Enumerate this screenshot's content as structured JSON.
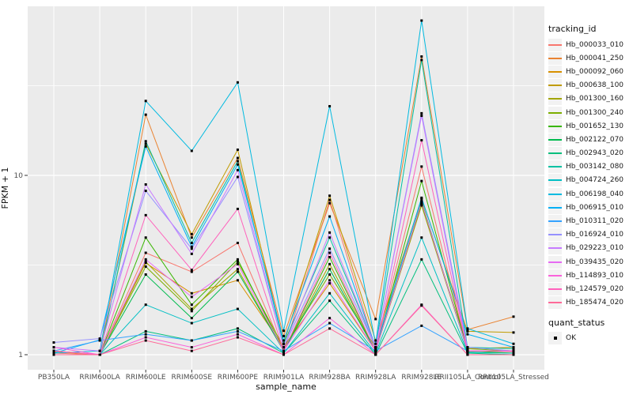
{
  "figure": {
    "background": "#FFFFFF",
    "panel_background": "#EBEBEB",
    "gridline_color": "#FFFFFF",
    "tick_color": "#333333",
    "tick_label_color": "#4D4D4D"
  },
  "legend": {
    "tracking_title": "tracking_id",
    "quant_title": "quant_status",
    "quant_items": [
      {
        "label": "OK",
        "marker": "black-square-point"
      }
    ],
    "key_background": "#F2F2F2"
  },
  "chart_data": {
    "type": "line",
    "xlabel": "sample_name",
    "ylabel": "FPKM + 1",
    "y_scale": "log10",
    "y_ticks": [
      1,
      10
    ],
    "y_tick_labels": [
      "1",
      "10"
    ],
    "ylim": [
      0.95,
      88
    ],
    "grid": true,
    "legend_position": "right",
    "point_marker": "small black square (quant_status = OK)",
    "x_categories": [
      "PB350LA",
      "RRIM600LA",
      "RRIM600LE",
      "RRIM600SE",
      "RRIM600PE",
      "RRIM901LA",
      "RRIM928BA",
      "RRIM928LA",
      "RRIM928LE",
      "RRII105LA_Control",
      "RRII105LA_Stressed"
    ],
    "series": [
      {
        "name": "Hb_000033_010",
        "color": "#F8766D",
        "values": [
          1.02,
          1.0,
          3.7,
          2.9,
          4.2,
          1.05,
          7.3,
          1.08,
          11.2,
          1.05,
          1.04
        ]
      },
      {
        "name": "Hb_000041_250",
        "color": "#EA8331",
        "values": [
          1.05,
          1.0,
          21.8,
          4.5,
          12.5,
          1.27,
          7.0,
          1.58,
          46.0,
          1.38,
          1.63
        ]
      },
      {
        "name": "Hb_000092_060",
        "color": "#D89000",
        "values": [
          1.05,
          1.0,
          3.25,
          2.2,
          2.6,
          1.1,
          2.5,
          1.05,
          7.0,
          1.08,
          1.1
        ]
      },
      {
        "name": "Hb_000638_100",
        "color": "#C09B00",
        "values": [
          1.04,
          1.0,
          15.0,
          4.7,
          13.9,
          1.15,
          7.7,
          1.2,
          7.4,
          1.35,
          1.33
        ]
      },
      {
        "name": "Hb_001300_160",
        "color": "#A3A500",
        "values": [
          1.0,
          1.0,
          3.3,
          1.8,
          3.0,
          1.05,
          3.2,
          1.05,
          6.8,
          1.05,
          1.05
        ]
      },
      {
        "name": "Hb_001300_240",
        "color": "#7CAE00",
        "values": [
          1.0,
          1.0,
          3.1,
          1.75,
          3.3,
          1.1,
          2.8,
          1.1,
          6.9,
          1.08,
          1.05
        ]
      },
      {
        "name": "Hb_001652_130",
        "color": "#39B600",
        "values": [
          1.0,
          1.0,
          4.5,
          1.9,
          3.4,
          1.05,
          3.5,
          1.05,
          9.3,
          1.05,
          1.02
        ]
      },
      {
        "name": "Hb_002122_070",
        "color": "#00BB4E",
        "values": [
          1.0,
          1.0,
          2.8,
          1.6,
          2.9,
          1.05,
          3.0,
          1.05,
          7.2,
          1.04,
          1.05
        ]
      },
      {
        "name": "Hb_002943_020",
        "color": "#00BF7D",
        "values": [
          1.0,
          1.0,
          1.35,
          1.2,
          1.4,
          1.02,
          2.0,
          1.0,
          3.4,
          1.02,
          1.0
        ]
      },
      {
        "name": "Hb_003142_080",
        "color": "#00C1A3",
        "values": [
          1.0,
          1.0,
          15.5,
          4.2,
          12.0,
          1.15,
          4.5,
          1.1,
          44.0,
          1.1,
          1.08
        ]
      },
      {
        "name": "Hb_004724_260",
        "color": "#00BFC4",
        "values": [
          1.0,
          1.0,
          1.9,
          1.5,
          1.8,
          1.02,
          2.2,
          1.02,
          4.5,
          1.03,
          1.02
        ]
      },
      {
        "name": "Hb_006198_040",
        "color": "#00BAE0",
        "values": [
          1.02,
          1.05,
          26.0,
          13.7,
          33.0,
          1.36,
          24.3,
          1.15,
          73.0,
          1.4,
          1.15
        ]
      },
      {
        "name": "Hb_006915_010",
        "color": "#00B0F6",
        "values": [
          1.02,
          1.21,
          14.5,
          4.0,
          11.5,
          1.2,
          5.9,
          1.1,
          7.5,
          1.3,
          1.1
        ]
      },
      {
        "name": "Hb_010311_020",
        "color": "#35A2FF",
        "values": [
          1.05,
          1.2,
          1.3,
          1.2,
          1.35,
          1.05,
          1.5,
          1.05,
          1.45,
          1.05,
          1.05
        ]
      },
      {
        "name": "Hb_016924_010",
        "color": "#9590FF",
        "values": [
          1.17,
          1.23,
          8.2,
          3.9,
          9.8,
          1.1,
          3.9,
          1.1,
          22.2,
          1.1,
          1.05
        ]
      },
      {
        "name": "Hb_029223_010",
        "color": "#C77CFF",
        "values": [
          1.1,
          1.05,
          8.9,
          3.65,
          10.7,
          1.1,
          4.8,
          1.1,
          21.5,
          1.05,
          1.05
        ]
      },
      {
        "name": "Hb_039435_020",
        "color": "#E76BF3",
        "values": [
          1.05,
          1.0,
          3.4,
          2.1,
          3.2,
          1.05,
          2.6,
          1.05,
          7.1,
          1.05,
          1.05
        ]
      },
      {
        "name": "Hb_114893_010",
        "color": "#FA62DB",
        "values": [
          1.1,
          1.0,
          1.25,
          1.1,
          1.3,
          1.0,
          1.6,
          1.0,
          1.9,
          1.0,
          1.0
        ]
      },
      {
        "name": "Hb_124579_020",
        "color": "#FF62BC",
        "values": [
          1.05,
          1.0,
          6.0,
          2.97,
          6.5,
          1.05,
          3.7,
          1.05,
          15.7,
          1.05,
          1.05
        ]
      },
      {
        "name": "Hb_185474_020",
        "color": "#FF6A98",
        "values": [
          1.0,
          1.0,
          1.2,
          1.05,
          1.25,
          1.0,
          1.4,
          1.0,
          1.88,
          1.0,
          1.0
        ]
      }
    ]
  }
}
